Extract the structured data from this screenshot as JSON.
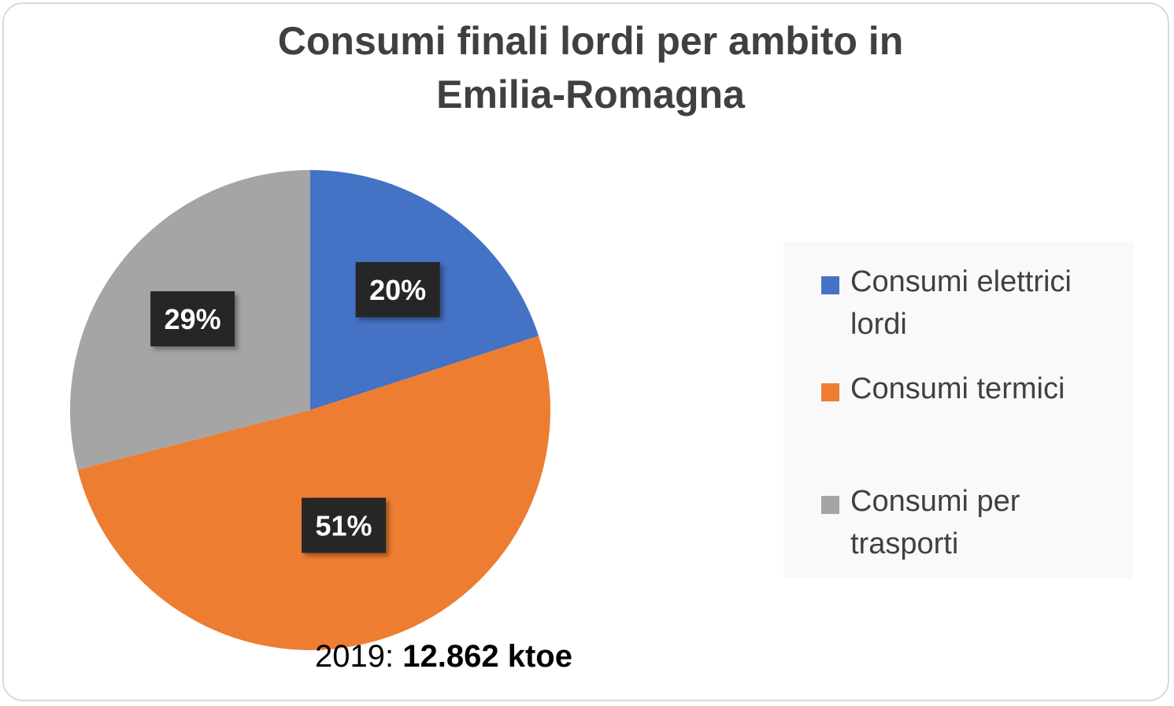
{
  "colors": {
    "Consumi elettrici lordi": "#4472c4",
    "Consumi termici": "#ed7d31",
    "Consumi per trasporti": "#a5a5a5",
    "label_bg": "#262626",
    "label_text": "#ffffff"
  },
  "chart_data": {
    "type": "pie",
    "title": "Consumi finali lordi per ambito in Emilia-Romagna",
    "title_lines": [
      "Consumi finali lordi per ambito in",
      "Emilia-Romagna"
    ],
    "categories": [
      "Consumi elettrici lordi",
      "Consumi termici",
      "Consumi per trasporti"
    ],
    "values": [
      20,
      51,
      29
    ],
    "data_labels": [
      "20%",
      "51%",
      "29%"
    ],
    "legend_position": "right"
  },
  "legend": {
    "items": [
      {
        "lines": [
          "Consumi elettrici",
          "lordi"
        ]
      },
      {
        "lines": [
          "Consumi termici"
        ]
      },
      {
        "lines": [
          "Consumi per",
          "trasporti"
        ]
      }
    ]
  },
  "footer": {
    "year": "2019:",
    "total": "12.862 ktoe"
  }
}
